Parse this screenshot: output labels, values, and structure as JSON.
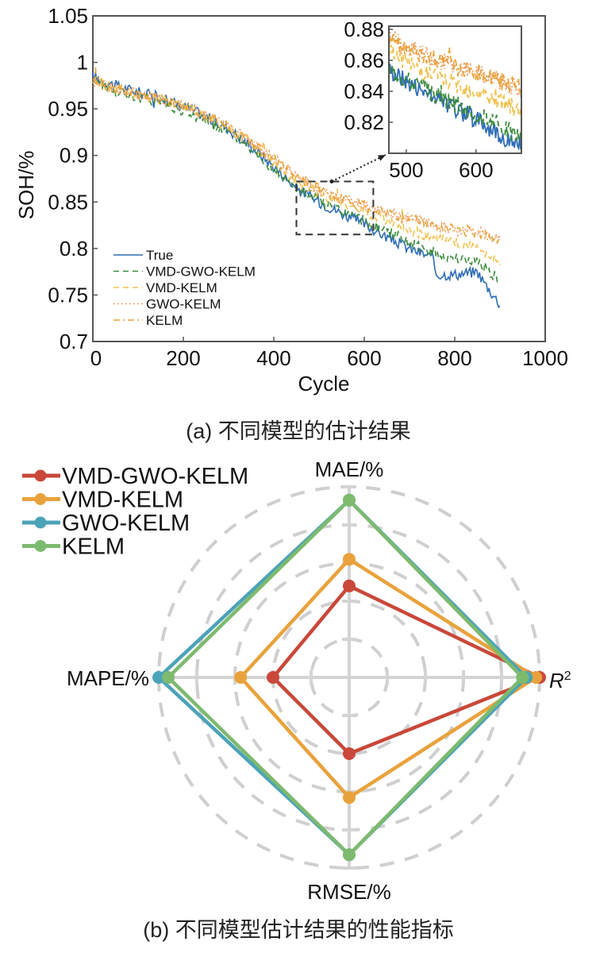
{
  "chart_data": [
    {
      "type": "line",
      "title": "",
      "caption": "(a) 不同模型的估计结果",
      "xlabel": "Cycle",
      "ylabel": "SOH/%",
      "xlim": [
        0,
        1000
      ],
      "ylim": [
        0.7,
        1.05
      ],
      "xticks": [
        "0",
        "200",
        "400",
        "600",
        "800",
        "1000"
      ],
      "yticks": [
        "0.7",
        "0.75",
        "0.8",
        "0.85",
        "0.9",
        "0.95",
        "1",
        "1.05"
      ],
      "legend_position": "bottom-left",
      "series": [
        {
          "name": "True",
          "color": "#2f6db5",
          "dash": "solid",
          "x": [
            0,
            50,
            100,
            150,
            200,
            250,
            300,
            350,
            400,
            450,
            500,
            550,
            600,
            650,
            700,
            750,
            760,
            800,
            850,
            870,
            900
          ],
          "y": [
            0.985,
            0.975,
            0.968,
            0.962,
            0.953,
            0.942,
            0.928,
            0.91,
            0.888,
            0.865,
            0.85,
            0.838,
            0.826,
            0.812,
            0.8,
            0.79,
            0.772,
            0.772,
            0.775,
            0.76,
            0.74
          ]
        },
        {
          "name": "VMD-GWO-KELM",
          "color": "#3a8a3a",
          "dash": "dashed",
          "x": [
            0,
            50,
            100,
            150,
            200,
            250,
            300,
            350,
            400,
            450,
            500,
            550,
            600,
            650,
            700,
            750,
            800,
            850,
            900
          ],
          "y": [
            0.982,
            0.968,
            0.962,
            0.957,
            0.948,
            0.938,
            0.925,
            0.908,
            0.885,
            0.866,
            0.852,
            0.84,
            0.83,
            0.818,
            0.806,
            0.796,
            0.789,
            0.787,
            0.765
          ]
        },
        {
          "name": "VMD-KELM",
          "color": "#f2c14e",
          "dash": "dashed",
          "x": [
            0,
            50,
            100,
            150,
            200,
            250,
            300,
            350,
            400,
            450,
            500,
            550,
            600,
            650,
            700,
            750,
            800,
            850,
            900
          ],
          "y": [
            0.98,
            0.972,
            0.966,
            0.96,
            0.952,
            0.942,
            0.93,
            0.913,
            0.893,
            0.872,
            0.858,
            0.848,
            0.84,
            0.83,
            0.82,
            0.812,
            0.806,
            0.802,
            0.783
          ]
        },
        {
          "name": "GWO-KELM",
          "color": "#f0a070",
          "dash": "dotted",
          "x": [
            0,
            50,
            100,
            150,
            200,
            250,
            300,
            350,
            400,
            450,
            500,
            550,
            600,
            650,
            700,
            750,
            800,
            850,
            900
          ],
          "y": [
            0.978,
            0.973,
            0.967,
            0.961,
            0.953,
            0.943,
            0.931,
            0.915,
            0.896,
            0.876,
            0.862,
            0.853,
            0.846,
            0.838,
            0.832,
            0.826,
            0.82,
            0.818,
            0.81
          ]
        },
        {
          "name": "KELM",
          "color": "#e8a33a",
          "dash": "dashdot",
          "x": [
            0,
            50,
            100,
            150,
            200,
            250,
            300,
            350,
            400,
            450,
            500,
            550,
            600,
            650,
            700,
            750,
            800,
            850,
            900
          ],
          "y": [
            0.978,
            0.973,
            0.967,
            0.961,
            0.953,
            0.943,
            0.931,
            0.915,
            0.896,
            0.876,
            0.862,
            0.853,
            0.846,
            0.838,
            0.832,
            0.826,
            0.82,
            0.818,
            0.81
          ]
        }
      ],
      "zoom_box": {
        "xlim": [
          450,
          620
        ],
        "ylim": [
          0.815,
          0.872
        ]
      },
      "inset": {
        "xlim": [
          475,
          665
        ],
        "ylim": [
          0.8,
          0.882
        ],
        "xticks": [
          "500",
          "600"
        ],
        "yticks": [
          "0.82",
          "0.84",
          "0.86",
          "0.88"
        ]
      }
    },
    {
      "type": "radar",
      "caption": "(b) 不同模型估计结果的性能指标",
      "axes": [
        "MAE/%",
        "R²",
        "RMSE/%",
        "MAPE/%"
      ],
      "axis_label_r2_base": "R",
      "axis_label_r2_sup": "2",
      "rings": 5,
      "legend_position": "top-left",
      "value_scale": "normalized (0-1 of outer ring)",
      "series": [
        {
          "name": "VMD-GWO-KELM",
          "color": "#c9483a",
          "values": [
            0.48,
            1.0,
            0.4,
            0.4
          ]
        },
        {
          "name": "VMD-KELM",
          "color": "#e9a23b",
          "values": [
            0.62,
            0.98,
            0.63,
            0.57
          ]
        },
        {
          "name": "GWO-KELM",
          "color": "#4ba3b8",
          "values": [
            0.93,
            0.93,
            0.93,
            1.0
          ]
        },
        {
          "name": "KELM",
          "color": "#7dba6e",
          "values": [
            0.93,
            0.91,
            0.93,
            0.95
          ]
        }
      ]
    }
  ]
}
